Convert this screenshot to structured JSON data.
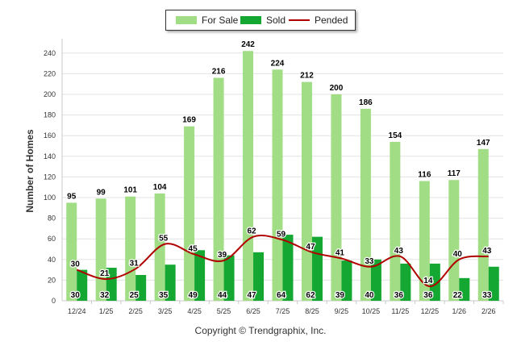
{
  "chart_data": {
    "type": "bar",
    "title": "",
    "xlabel": "",
    "ylabel": "Number of Homes",
    "ylim": [
      0,
      250
    ],
    "yticks": [
      0,
      20,
      40,
      60,
      80,
      100,
      120,
      140,
      160,
      180,
      200,
      220,
      240
    ],
    "categories": [
      "12/24",
      "1/25",
      "2/25",
      "3/25",
      "4/25",
      "5/25",
      "6/25",
      "7/25",
      "8/25",
      "9/25",
      "10/25",
      "11/25",
      "12/25",
      "1/26",
      "2/26"
    ],
    "series": [
      {
        "name": "For Sale",
        "kind": "bar",
        "color": "#a0dd84",
        "values": [
          95,
          99,
          101,
          104,
          169,
          216,
          242,
          224,
          212,
          200,
          186,
          154,
          116,
          117,
          147
        ]
      },
      {
        "name": "Sold",
        "kind": "bar",
        "color": "#14a832",
        "values": [
          30,
          32,
          25,
          35,
          49,
          44,
          47,
          64,
          62,
          39,
          40,
          36,
          36,
          22,
          33
        ]
      },
      {
        "name": "Pended",
        "kind": "line",
        "color": "#b00000",
        "values": [
          30,
          21,
          31,
          55,
          45,
          39,
          62,
          59,
          47,
          41,
          33,
          43,
          14,
          40,
          43
        ]
      }
    ],
    "legend_position": "top-center",
    "grid": true
  },
  "legend": {
    "items": [
      {
        "label": "For Sale",
        "color": "#a0dd84",
        "kind": "bar"
      },
      {
        "label": "Sold",
        "color": "#14a832",
        "kind": "bar"
      },
      {
        "label": "Pended",
        "color": "#b00000",
        "kind": "line"
      }
    ]
  },
  "footer": {
    "copyright": "Copyright © Trendgraphix, Inc."
  }
}
